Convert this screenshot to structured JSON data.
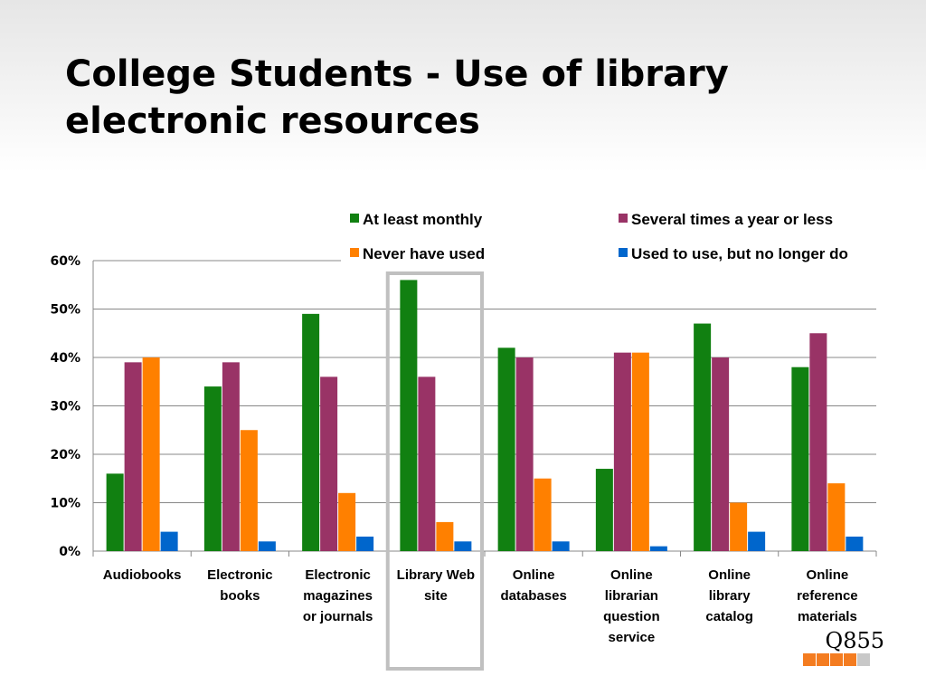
{
  "slide": {
    "title_line1": "College Students - Use of library",
    "title_line2": "electronic resources",
    "code": "Q855",
    "footer_square_colors": [
      "#f47c20",
      "#f47c20",
      "#f47c20",
      "#f47c20",
      "#c8c8c8"
    ]
  },
  "chart_data": {
    "type": "bar",
    "ylim": [
      0,
      60
    ],
    "yticks": [
      "0%",
      "10%",
      "20%",
      "30%",
      "40%",
      "50%",
      "60%"
    ],
    "categories": [
      [
        "Audiobooks"
      ],
      [
        "Electronic",
        "books"
      ],
      [
        "Electronic",
        "magazines",
        "or journals"
      ],
      [
        "Library Web",
        "site"
      ],
      [
        "Online",
        "databases"
      ],
      [
        "Online",
        "librarian",
        "question",
        "service"
      ],
      [
        "Online",
        "library",
        "catalog"
      ],
      [
        "Online",
        "reference",
        "materials"
      ]
    ],
    "series": [
      {
        "name": "At least monthly",
        "color": "#118011",
        "values": [
          16,
          34,
          49,
          56,
          42,
          17,
          47,
          38
        ]
      },
      {
        "name": "Several times a year or less",
        "color": "#993366",
        "values": [
          39,
          39,
          36,
          36,
          40,
          41,
          40,
          45
        ]
      },
      {
        "name": "Never have used",
        "color": "#ff8000",
        "values": [
          40,
          25,
          12,
          6,
          15,
          41,
          10,
          14
        ]
      },
      {
        "name": "Used to use, but no longer do",
        "color": "#0066cc",
        "values": [
          4,
          2,
          3,
          2,
          2,
          1,
          4,
          3
        ]
      }
    ],
    "highlighted_category": "Library Web site",
    "grid": true,
    "legend_position": "top-right"
  }
}
